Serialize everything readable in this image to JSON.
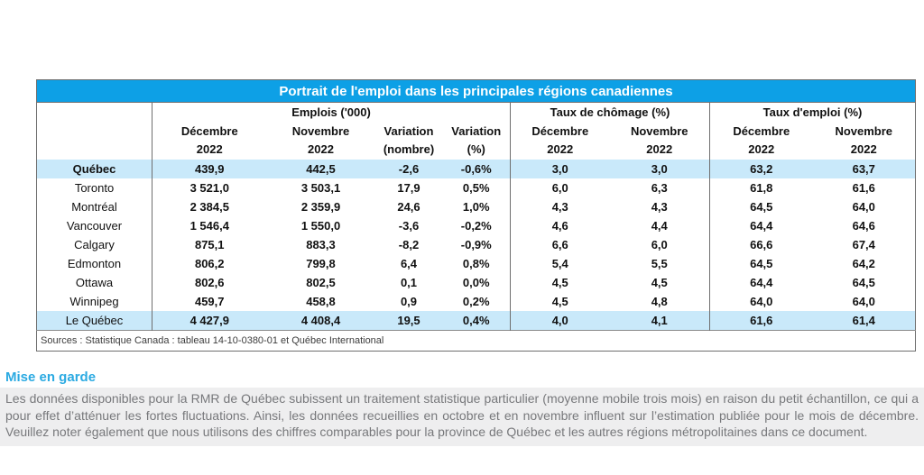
{
  "table": {
    "title": "Portrait de l'emploi dans les principales régions canadiennes",
    "groups": [
      {
        "label": "Emplois ('000)",
        "span": 4
      },
      {
        "label": "Taux de chômage (%)",
        "span": 2
      },
      {
        "label": "Taux d'emploi (%)",
        "span": 2
      }
    ],
    "columns": [
      {
        "line1": "Décembre",
        "line2": "2022"
      },
      {
        "line1": "Novembre",
        "line2": "2022"
      },
      {
        "line1": "Variation",
        "line2": "(nombre)"
      },
      {
        "line1": "Variation",
        "line2": "(%)"
      },
      {
        "line1": "Décembre",
        "line2": "2022"
      },
      {
        "line1": "Novembre",
        "line2": "2022"
      },
      {
        "line1": "Décembre",
        "line2": "2022"
      },
      {
        "line1": "Novembre",
        "line2": "2022"
      }
    ],
    "rows": [
      {
        "label": "Québec",
        "bold_label": true,
        "highlight": true,
        "values": [
          "439,9",
          "442,5",
          "-2,6",
          "-0,6%",
          "3,0",
          "3,0",
          "63,2",
          "63,7"
        ]
      },
      {
        "label": "Toronto",
        "bold_label": false,
        "highlight": false,
        "values": [
          "3 521,0",
          "3 503,1",
          "17,9",
          "0,5%",
          "6,0",
          "6,3",
          "61,8",
          "61,6"
        ]
      },
      {
        "label": "Montréal",
        "bold_label": false,
        "highlight": false,
        "values": [
          "2 384,5",
          "2 359,9",
          "24,6",
          "1,0%",
          "4,3",
          "4,3",
          "64,5",
          "64,0"
        ]
      },
      {
        "label": "Vancouver",
        "bold_label": false,
        "highlight": false,
        "values": [
          "1 546,4",
          "1 550,0",
          "-3,6",
          "-0,2%",
          "4,6",
          "4,4",
          "64,4",
          "64,6"
        ]
      },
      {
        "label": "Calgary",
        "bold_label": false,
        "highlight": false,
        "values": [
          "875,1",
          "883,3",
          "-8,2",
          "-0,9%",
          "6,6",
          "6,0",
          "66,6",
          "67,4"
        ]
      },
      {
        "label": "Edmonton",
        "bold_label": false,
        "highlight": false,
        "values": [
          "806,2",
          "799,8",
          "6,4",
          "0,8%",
          "5,4",
          "5,5",
          "64,5",
          "64,2"
        ]
      },
      {
        "label": "Ottawa",
        "bold_label": false,
        "highlight": false,
        "values": [
          "802,6",
          "802,5",
          "0,1",
          "0,0%",
          "4,5",
          "4,5",
          "64,4",
          "64,5"
        ]
      },
      {
        "label": "Winnipeg",
        "bold_label": false,
        "highlight": false,
        "values": [
          "459,7",
          "458,8",
          "0,9",
          "0,2%",
          "4,5",
          "4,8",
          "64,0",
          "64,0"
        ]
      },
      {
        "label": "Le Québec",
        "bold_label": false,
        "highlight": true,
        "values": [
          "4 427,9",
          "4 408,4",
          "19,5",
          "0,4%",
          "4,0",
          "4,1",
          "61,6",
          "61,4"
        ]
      }
    ],
    "source": "Sources : Statistique Canada : tableau 14-10-0380-01 et Québec International"
  },
  "note": {
    "heading": "Mise en garde",
    "body": "Les données disponibles pour la RMR de Québec subissent un traitement statistique particulier (moyenne mobile trois mois) en raison du petit échantillon, ce qui a pour effet d’atténuer les fortes fluctuations. Ainsi, les données recueillies en octobre et en novembre influent sur l’estimation publiée pour le mois de décembre. Veuillez noter également que nous utilisons des chiffres comparables pour la province de Québec et les autres régions métropolitaines dans ce document."
  },
  "colors": {
    "title_bar_blue": "#0da0e6",
    "highlight_row_blue": "#c9e9fa",
    "note_heading_blue": "#2baae2",
    "note_background_gray": "#eeeeef",
    "note_text_gray": "#77787b",
    "table_border_gray": "#6e6e6e"
  }
}
